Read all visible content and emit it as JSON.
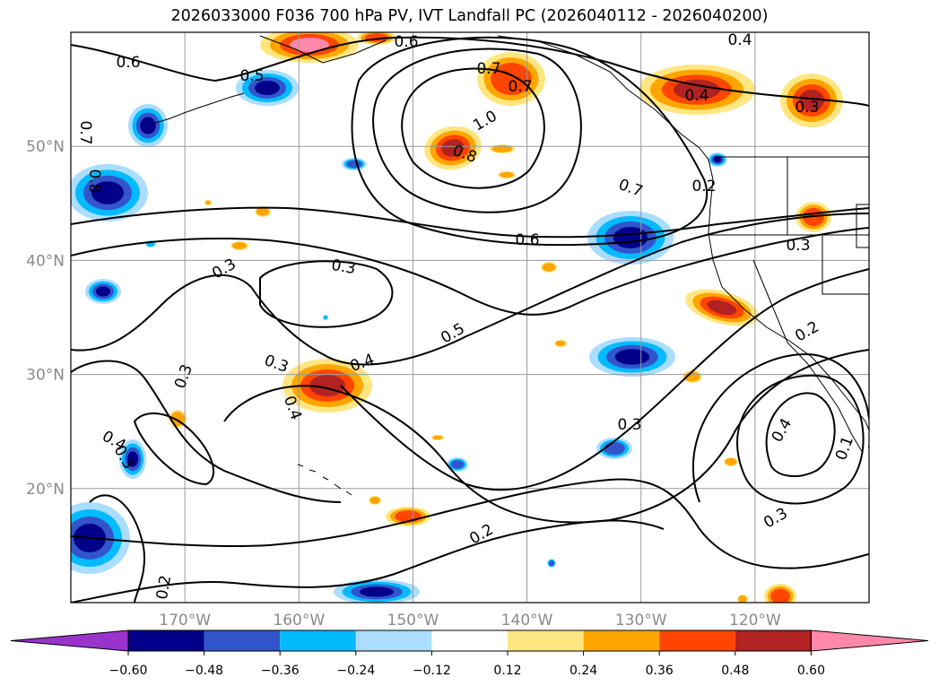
{
  "title": "2026033000 F036 700 hPa PV, IVT Landfall PC (2026040112 - 2026040200)",
  "map": {
    "lon_labels": [
      "170°W",
      "160°W",
      "150°W",
      "140°W",
      "130°W",
      "120°W"
    ],
    "lat_labels": [
      "50°N",
      "40°N",
      "30°N",
      "20°N"
    ],
    "contour_labels": [
      "0.6",
      "0.5",
      "0.6",
      "0.7",
      "1.0",
      "0.8",
      "0.4",
      "0.4",
      "0.3",
      "0.7",
      "0.8",
      "0.7",
      "0.2",
      "0.7",
      "0.6",
      "0.3",
      "0.3",
      "0.3",
      "0.3",
      "0.5",
      "0.4",
      "0.3",
      "0.4",
      "0.2",
      "0.4",
      "0.3",
      "0.4",
      "0.3",
      "0.2",
      "0.3",
      "0.2",
      "0.1"
    ]
  },
  "colorbar": {
    "ticks": [
      "−0.60",
      "−0.48",
      "−0.36",
      "−0.24",
      "−0.12",
      "0.12",
      "0.24",
      "0.36",
      "0.48",
      "0.60"
    ],
    "colors": [
      "#9933cc",
      "#00008b",
      "#3355cc",
      "#00bbff",
      "#aaddff",
      "#ffffff",
      "#ffe680",
      "#ffa500",
      "#ff4500",
      "#b22222",
      "#ff88aa"
    ]
  },
  "chart_data": {
    "type": "map",
    "title": "2026033000 F036 700 hPa PV, IVT Landfall PC (2026040112 - 2026040200)",
    "lon_range": [
      -180,
      -110
    ],
    "lat_range": [
      10,
      60
    ],
    "lon_ticks": [
      -170,
      -160,
      -150,
      -140,
      -130,
      -120
    ],
    "lat_ticks": [
      20,
      30,
      40,
      50
    ],
    "shading_levels": [
      -0.6,
      -0.48,
      -0.36,
      -0.24,
      -0.12,
      0.12,
      0.24,
      0.36,
      0.48,
      0.6
    ],
    "contour_levels": [
      0.1,
      0.2,
      0.3,
      0.4,
      0.5,
      0.6,
      0.7,
      0.8,
      1.0
    ]
  }
}
